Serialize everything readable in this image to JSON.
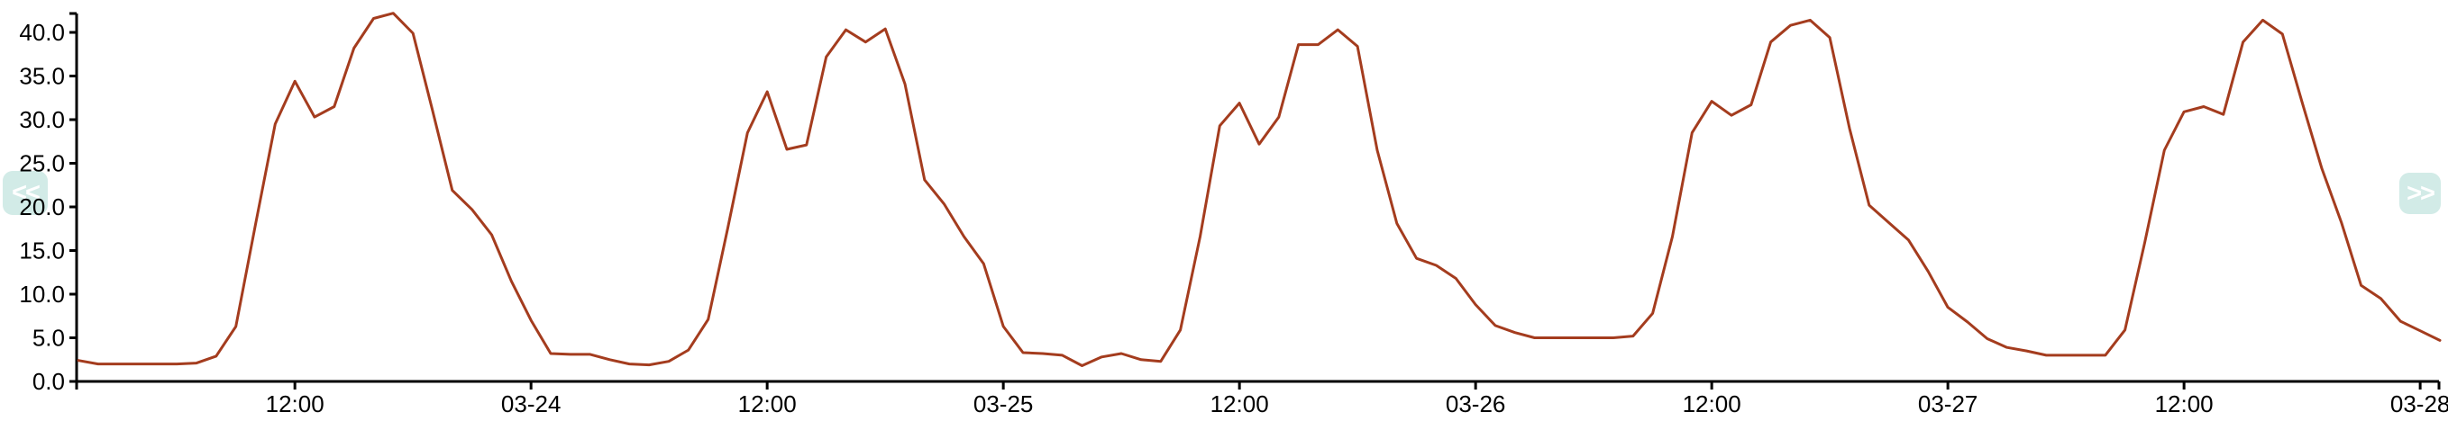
{
  "nav": {
    "prev_label": "<<",
    "next_label": ">>"
  },
  "colors": {
    "background": "#ffffff",
    "axis": "#000000",
    "tick_text": "#000000",
    "line": "#a43c1e",
    "nav_bg": "#d2ebe7",
    "nav_fg": "#ffffff"
  },
  "chart_data": {
    "type": "line",
    "title": "",
    "xlabel": "",
    "ylabel": "",
    "grid": false,
    "legend": null,
    "ylim": [
      0,
      42.5
    ],
    "x_step_hours": 1,
    "n_points": 121,
    "line_color": "#a43c1e",
    "y_ticks": [
      {
        "value": 0,
        "label": "0.0"
      },
      {
        "value": 5,
        "label": "5.0"
      },
      {
        "value": 10,
        "label": "10.0"
      },
      {
        "value": 15,
        "label": "15.0"
      },
      {
        "value": 20,
        "label": "20.0"
      },
      {
        "value": 25,
        "label": "25.0"
      },
      {
        "value": 30,
        "label": "30.0"
      },
      {
        "value": 35,
        "label": "35.0"
      },
      {
        "value": 40,
        "label": "40.0"
      }
    ],
    "x_ticks": [
      {
        "index": 11,
        "label": "12:00"
      },
      {
        "index": 23,
        "label": "03-24"
      },
      {
        "index": 35,
        "label": "12:00"
      },
      {
        "index": 47,
        "label": "03-25"
      },
      {
        "index": 59,
        "label": "12:00"
      },
      {
        "index": 71,
        "label": "03-26"
      },
      {
        "index": 83,
        "label": "12:00"
      },
      {
        "index": 95,
        "label": "03-27"
      },
      {
        "index": 107,
        "label": "12:00"
      },
      {
        "index": 119,
        "label": "03-28"
      }
    ],
    "values": [
      2.4,
      2.0,
      2.0,
      2.0,
      2.0,
      2.0,
      2.1,
      2.9,
      6.3,
      18.0,
      29.5,
      34.4,
      30.3,
      31.5,
      38.2,
      41.6,
      42.2,
      39.9,
      31.0,
      21.9,
      19.7,
      16.8,
      11.5,
      7.0,
      3.2,
      3.1,
      3.1,
      2.5,
      2.0,
      1.9,
      2.3,
      3.6,
      7.1,
      17.6,
      28.5,
      33.2,
      26.6,
      27.1,
      37.2,
      40.3,
      38.9,
      40.4,
      34.1,
      23.1,
      20.3,
      16.6,
      13.5,
      6.3,
      3.3,
      3.2,
      3.0,
      1.8,
      2.8,
      3.2,
      2.5,
      2.3,
      5.9,
      16.6,
      29.3,
      31.9,
      27.2,
      30.3,
      38.6,
      38.6,
      40.3,
      38.4,
      26.5,
      18.1,
      14.1,
      13.3,
      11.8,
      8.8,
      6.4,
      5.6,
      5.0,
      5.0,
      5.0,
      5.0,
      5.0,
      5.2,
      7.8,
      16.6,
      28.5,
      32.1,
      30.5,
      31.7,
      38.9,
      40.8,
      41.4,
      39.4,
      29.0,
      20.2,
      18.2,
      16.2,
      12.6,
      8.5,
      6.8,
      4.9,
      3.9,
      3.5,
      3.0,
      3.0,
      3.0,
      3.0,
      5.9,
      15.9,
      26.5,
      30.9,
      31.5,
      30.6,
      38.9,
      41.4,
      39.8,
      32.0,
      24.4,
      18.2,
      11.0,
      9.5,
      6.9,
      5.8,
      4.7
    ]
  }
}
